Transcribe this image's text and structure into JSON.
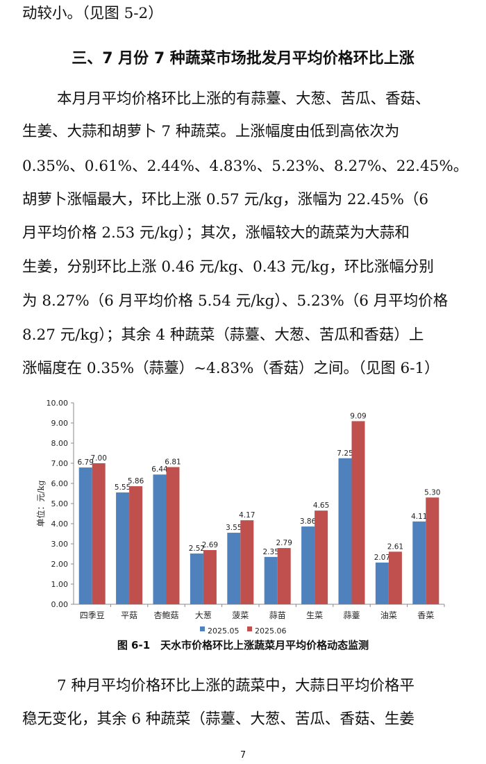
{
  "lines_top": [
    "动较小。（见图 5-2）"
  ],
  "heading": "三、7 月份 7 种蔬菜市场批发月平均价格环比上涨",
  "para1": [
    "本月月平均价格环比上涨的有蒜薹、大葱、苦瓜、香菇、",
    "生姜、大蒜和胡萝卜 7 种蔬菜。上涨幅度由低到高依次为",
    "0.35%、0.61%、2.44%、4.83%、5.23%、8.27%、22.45%。",
    "胡萝卜涨幅最大，环比上涨 0.57 元/kg，涨幅为 22.45%（6",
    "月平均价格 2.53 元/kg）；其次，涨幅较大的蔬菜为大蒜和",
    "生姜，分别环比上涨 0.46 元/kg、0.43 元/kg，环比涨幅分别",
    "为 8.27%（6 月平均价格 5.54 元/kg）、5.23%（6 月平均价格",
    "8.27 元/kg）；其余 4 种蔬菜（蒜薹、大葱、苦瓜和香菇）上",
    "涨幅度在 0.35%（蒜薹）~4.83%（香菇）之间。（见图 6-1）"
  ],
  "caption": "图 6-1　天水市价格环比上涨蔬菜月平均价格动态监测",
  "para2": [
    "7 种月平均价格环比上涨的蔬菜中，大蒜日平均价格平",
    "稳无变化，其余 6 种蔬菜（蒜薹、大葱、苦瓜、香菇、生姜"
  ],
  "page_number": "7",
  "chart_data": {
    "type": "bar",
    "categories": [
      "四季豆",
      "平菇",
      "杏鲍菇",
      "大葱",
      "菠菜",
      "蒜苗",
      "生菜",
      "蒜薹",
      "油菜",
      "香菜"
    ],
    "series": [
      {
        "name": "2025.05",
        "color": "#4F81BD",
        "values": [
          6.79,
          5.55,
          6.44,
          2.52,
          3.55,
          2.35,
          3.86,
          7.25,
          2.07,
          4.11
        ]
      },
      {
        "name": "2025.06",
        "color": "#C0504D",
        "values": [
          7.0,
          5.86,
          6.81,
          2.69,
          4.17,
          2.79,
          4.65,
          9.09,
          2.61,
          5.3
        ]
      }
    ],
    "ylabel": "单位：元/kg",
    "ylim": [
      0,
      10
    ],
    "yticks": [
      "0.00",
      "1.00",
      "2.00",
      "3.00",
      "4.00",
      "5.00",
      "6.00",
      "7.00",
      "8.00",
      "9.00",
      "10.00"
    ],
    "grid": false,
    "legend": "bottom"
  }
}
